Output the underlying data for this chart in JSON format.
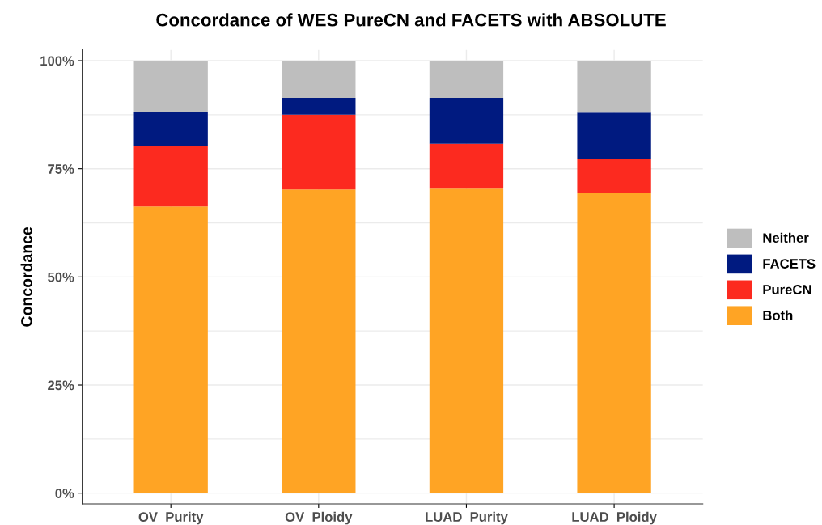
{
  "chart_data": {
    "type": "bar",
    "title": "Concordance of WES PureCN and FACETS with ABSOLUTE",
    "ylabel": "Concordance",
    "categories": [
      "OV_Purity",
      "OV_Ploidy",
      "LUAD_Purity",
      "LUAD_Ploidy"
    ],
    "stacked": true,
    "series": [
      {
        "name": "Both",
        "color": "#ffa424",
        "values": [
          66.3,
          70.2,
          70.4,
          69.4
        ]
      },
      {
        "name": "PureCN",
        "color": "#fc2a1f",
        "values": [
          13.9,
          17.3,
          10.4,
          7.9
        ]
      },
      {
        "name": "FACETS",
        "color": "#001a80",
        "values": [
          8.0,
          3.9,
          10.6,
          10.7
        ]
      },
      {
        "name": "Neither",
        "color": "#bebebe",
        "values": [
          11.8,
          8.6,
          8.6,
          12.0
        ]
      }
    ],
    "ylim": [
      -2.5,
      102.5
    ],
    "yticks": [
      {
        "value": 0,
        "label": "0%"
      },
      {
        "value": 25,
        "label": "25%"
      },
      {
        "value": 50,
        "label": "50%"
      },
      {
        "value": 75,
        "label": "75%"
      },
      {
        "value": 100,
        "label": "100%"
      }
    ],
    "grid": true,
    "legend": "right"
  }
}
